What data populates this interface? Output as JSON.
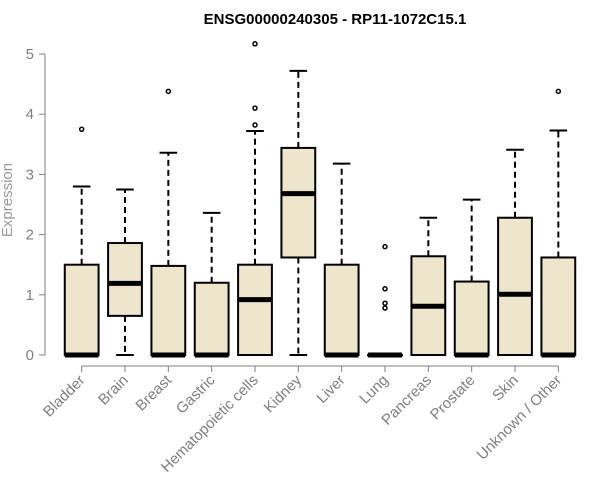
{
  "chart_data": {
    "type": "boxplot",
    "title": "ENSG00000240305 - RP11-1072C15.1",
    "xlabel": "",
    "ylabel": "Expression",
    "ylim": [
      0,
      5
    ],
    "yticks": [
      "0",
      "1",
      "2",
      "3",
      "4",
      "5"
    ],
    "grid": false,
    "box_fill": "#ede6cc",
    "box_stroke": "#000000",
    "axis_color": "#7f7f7f",
    "categories": [
      "Bladder",
      "Brain",
      "Breast",
      "Gastric",
      "Hematopoietic cells",
      "Kidney",
      "Liver",
      "Lung",
      "Pancreas",
      "Prostate",
      "Skin",
      "Unknown / Other"
    ],
    "boxes": [
      {
        "min": 0,
        "q1": 0,
        "median": 0,
        "q3": 1.5,
        "max": 2.8,
        "outliers": [
          3.75
        ]
      },
      {
        "min": 0,
        "q1": 0.65,
        "median": 1.19,
        "q3": 1.86,
        "max": 2.75,
        "outliers": []
      },
      {
        "min": 0,
        "q1": 0,
        "median": 0,
        "q3": 1.48,
        "max": 3.36,
        "outliers": [
          4.38
        ]
      },
      {
        "min": 0,
        "q1": 0,
        "median": 0,
        "q3": 1.2,
        "max": 2.36,
        "outliers": []
      },
      {
        "min": 0,
        "q1": 0,
        "median": 0.92,
        "q3": 1.5,
        "max": 3.72,
        "outliers": [
          3.82,
          4.1,
          5.17
        ]
      },
      {
        "min": 0,
        "q1": 1.62,
        "median": 2.68,
        "q3": 3.44,
        "max": 4.72,
        "outliers": []
      },
      {
        "min": 0,
        "q1": 0,
        "median": 0,
        "q3": 1.5,
        "max": 3.18,
        "outliers": []
      },
      {
        "min": 0,
        "q1": 0,
        "median": 0,
        "q3": 0,
        "max": 0,
        "outliers": [
          0.78,
          0.86,
          1.1,
          1.8
        ]
      },
      {
        "min": 0,
        "q1": 0,
        "median": 0.81,
        "q3": 1.64,
        "max": 2.28,
        "outliers": []
      },
      {
        "min": 0,
        "q1": 0,
        "median": 0,
        "q3": 1.22,
        "max": 2.58,
        "outliers": []
      },
      {
        "min": 0,
        "q1": 0,
        "median": 1.01,
        "q3": 2.28,
        "max": 3.41,
        "outliers": []
      },
      {
        "min": 0,
        "q1": 0,
        "median": 0,
        "q3": 1.62,
        "max": 3.73,
        "outliers": [
          4.38
        ]
      }
    ]
  }
}
